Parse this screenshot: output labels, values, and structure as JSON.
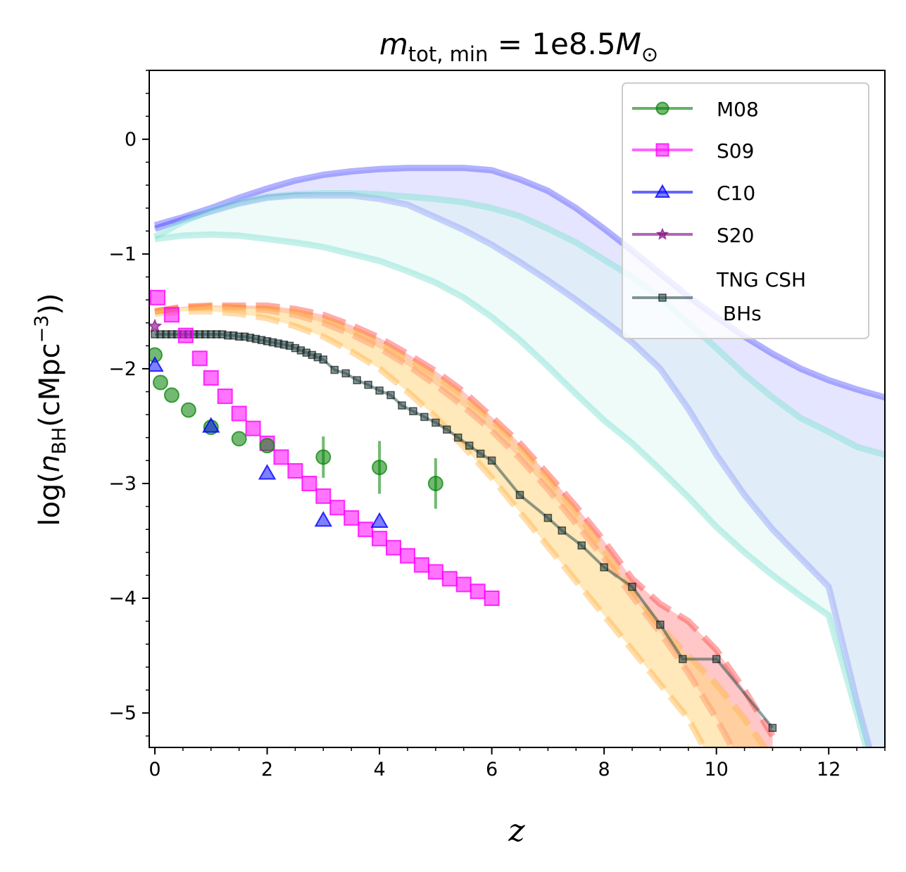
{
  "chart_data": {
    "type": "line",
    "title": {
      "main": "m",
      "sub": "tot, min",
      "rest": " = 1e8.5",
      "unit": "M",
      "sun": "⊙"
    },
    "xlabel": "z",
    "ylabel": {
      "pre": "log(",
      "n": "n",
      "sub": "BH",
      "mid": "(cMpc",
      "sup": "−3",
      "post": "))"
    },
    "xlim": [
      -0.1,
      13.0
    ],
    "ylim": [
      -5.3,
      0.6
    ],
    "x_ticks": [
      0,
      2,
      4,
      6,
      8,
      10,
      12
    ],
    "x_tick_labels": [
      "0",
      "2",
      "4",
      "6",
      "8",
      "10",
      "12"
    ],
    "y_ticks": [
      0,
      -1,
      -2,
      -3,
      -4,
      -5
    ],
    "y_tick_labels": [
      "0",
      "−1",
      "−2",
      "−3",
      "−4",
      "−5"
    ],
    "legend": {
      "location": "upper right",
      "entries": [
        {
          "label": "M08",
          "color": "#008000",
          "marker": "circle"
        },
        {
          "label": "S09",
          "color": "#ff00ff",
          "marker": "square"
        },
        {
          "label": "C10",
          "color": "#0000ff",
          "marker": "triangle"
        },
        {
          "label": "S20",
          "color": "#800080",
          "marker": "star"
        },
        {
          "label": "TNG CSH",
          "label2": " BHs",
          "color": "#2f4f4f",
          "marker": "small-square"
        }
      ]
    },
    "bands": [
      {
        "name": "seed-model-blue",
        "color": "#5555ff",
        "fill": "#c5c5ff",
        "x": [
          0,
          0.5,
          1,
          1.5,
          2,
          2.5,
          3,
          3.5,
          4,
          4.5,
          5,
          5.5,
          6,
          6.5,
          7,
          7.5,
          8,
          8.5,
          9,
          9.5,
          10,
          10.5,
          11,
          11.5,
          12,
          12.5,
          13
        ],
        "upper": [
          -0.75,
          -0.68,
          -0.6,
          -0.51,
          -0.43,
          -0.36,
          -0.31,
          -0.28,
          -0.26,
          -0.25,
          -0.25,
          -0.25,
          -0.27,
          -0.35,
          -0.45,
          -0.6,
          -0.78,
          -0.97,
          -1.17,
          -1.37,
          -1.55,
          -1.72,
          -1.87,
          -2.0,
          -2.1,
          -2.18,
          -2.25
        ],
        "lower": [
          -0.78,
          -0.7,
          -0.63,
          -0.56,
          -0.51,
          -0.49,
          -0.49,
          -0.49,
          -0.52,
          -0.57,
          -0.68,
          -0.79,
          -0.92,
          -1.07,
          -1.23,
          -1.4,
          -1.58,
          -1.77,
          -2.0,
          -2.35,
          -2.75,
          -3.1,
          -3.4,
          -3.65,
          -3.9,
          -4.9,
          -5.8
        ]
      },
      {
        "name": "seed-model-cyan",
        "color": "#7fe0d0",
        "fill": "#d9f7f2",
        "x": [
          0,
          0.5,
          1,
          1.5,
          2,
          2.5,
          3,
          3.5,
          4,
          4.5,
          5,
          5.5,
          6,
          6.5,
          7,
          7.5,
          8,
          8.5,
          9,
          9.5,
          10,
          10.5,
          11,
          11.5,
          12,
          12.5,
          13
        ],
        "upper": [
          -0.85,
          -0.72,
          -0.62,
          -0.55,
          -0.5,
          -0.48,
          -0.47,
          -0.47,
          -0.48,
          -0.5,
          -0.52,
          -0.55,
          -0.6,
          -0.67,
          -0.78,
          -0.9,
          -1.05,
          -1.2,
          -1.38,
          -1.6,
          -1.82,
          -2.05,
          -2.25,
          -2.43,
          -2.55,
          -2.68,
          -2.75
        ],
        "lower": [
          -0.87,
          -0.84,
          -0.83,
          -0.84,
          -0.87,
          -0.9,
          -0.94,
          -1.0,
          -1.06,
          -1.15,
          -1.25,
          -1.38,
          -1.55,
          -1.75,
          -1.98,
          -2.22,
          -2.45,
          -2.65,
          -2.88,
          -3.12,
          -3.38,
          -3.6,
          -3.8,
          -3.98,
          -4.15,
          -5.0,
          -5.9
        ]
      },
      {
        "name": "seed-model-red",
        "color": "#ff4444",
        "fill": "#ff9999",
        "dashed": true,
        "x": [
          0,
          0.5,
          1,
          1.5,
          2,
          2.5,
          3,
          3.5,
          4,
          4.5,
          5,
          5.5,
          6,
          6.5,
          7,
          7.5,
          8,
          8.5,
          9,
          9.5,
          10,
          10.5,
          11
        ],
        "upper": [
          -1.5,
          -1.46,
          -1.45,
          -1.45,
          -1.45,
          -1.48,
          -1.53,
          -1.62,
          -1.73,
          -1.87,
          -2.02,
          -2.2,
          -2.42,
          -2.65,
          -2.92,
          -3.2,
          -3.5,
          -3.83,
          -4.05,
          -4.2,
          -4.45,
          -4.8,
          -5.2
        ],
        "lower": [
          -1.5,
          -1.47,
          -1.46,
          -1.47,
          -1.49,
          -1.53,
          -1.6,
          -1.7,
          -1.82,
          -1.97,
          -2.14,
          -2.33,
          -2.54,
          -2.78,
          -3.05,
          -3.35,
          -3.65,
          -3.98,
          -4.3,
          -4.65,
          -5.05,
          -5.5,
          -5.9
        ]
      },
      {
        "name": "seed-model-orange",
        "color": "#ffb347",
        "fill": "#ffd580",
        "dashed": true,
        "x": [
          0,
          0.5,
          1,
          1.5,
          2,
          2.5,
          3,
          3.5,
          4,
          4.5,
          5,
          5.5,
          6,
          6.5,
          7,
          7.5,
          8,
          8.5,
          9,
          9.5,
          10,
          10.5,
          11
        ],
        "upper": [
          -1.5,
          -1.47,
          -1.45,
          -1.46,
          -1.47,
          -1.5,
          -1.56,
          -1.65,
          -1.77,
          -1.91,
          -2.06,
          -2.24,
          -2.45,
          -2.68,
          -2.95,
          -3.25,
          -3.58,
          -3.92,
          -4.25,
          -4.5,
          -4.75,
          -5.05,
          -5.4
        ],
        "lower": [
          -1.52,
          -1.5,
          -1.5,
          -1.52,
          -1.56,
          -1.63,
          -1.72,
          -1.85,
          -2.0,
          -2.2,
          -2.42,
          -2.68,
          -2.95,
          -3.25,
          -3.55,
          -3.85,
          -4.15,
          -4.45,
          -4.75,
          -5.05,
          -5.5,
          -5.9,
          -6.2
        ]
      }
    ],
    "series": [
      {
        "name": "M08",
        "color": "#008000",
        "marker": "circle",
        "x": [
          0,
          0.1,
          0.3,
          0.6,
          1.0,
          1.5,
          2.0
        ],
        "y": [
          -1.88,
          -2.12,
          -2.23,
          -2.36,
          -2.51,
          -2.61,
          -2.67
        ],
        "extra_points": [
          {
            "x": 3,
            "y": -2.77,
            "err": 0.18
          },
          {
            "x": 4,
            "y": -2.86,
            "err": 0.23
          },
          {
            "x": 5,
            "y": -3.0,
            "err": 0.22
          }
        ]
      },
      {
        "name": "S09",
        "color": "#ff00ff",
        "marker": "square",
        "x": [
          0.05,
          0.3,
          0.55,
          0.8,
          1.0,
          1.25,
          1.5,
          1.75,
          2.0,
          2.25,
          2.5,
          2.75,
          3.0,
          3.25,
          3.5,
          3.75,
          4.0,
          4.25,
          4.5,
          4.75,
          5.0,
          5.25,
          5.5,
          5.75,
          6.0
        ],
        "y": [
          -1.38,
          -1.53,
          -1.71,
          -1.91,
          -2.08,
          -2.24,
          -2.39,
          -2.52,
          -2.65,
          -2.77,
          -2.89,
          -3.0,
          -3.11,
          -3.21,
          -3.3,
          -3.4,
          -3.48,
          -3.56,
          -3.63,
          -3.71,
          -3.77,
          -3.83,
          -3.88,
          -3.94,
          -4.0
        ]
      },
      {
        "name": "C10",
        "color": "#0000ff",
        "marker": "triangle",
        "x": [
          0.0,
          1.0,
          2.0,
          3.0,
          4.0
        ],
        "y": [
          -1.97,
          -2.5,
          -2.91,
          -3.32,
          -3.33
        ]
      },
      {
        "name": "S20",
        "color": "#800080",
        "marker": "star",
        "x": [
          0.0
        ],
        "y": [
          -1.63
        ]
      },
      {
        "name": "TNG CSH BHs",
        "color": "#2f4f4f",
        "marker": "small-square",
        "x": [
          0,
          0.1,
          0.2,
          0.3,
          0.4,
          0.5,
          0.6,
          0.7,
          0.8,
          0.9,
          1.0,
          1.1,
          1.2,
          1.3,
          1.4,
          1.5,
          1.6,
          1.7,
          1.8,
          1.9,
          2.0,
          2.1,
          2.2,
          2.3,
          2.4,
          2.5,
          2.6,
          2.7,
          2.8,
          2.9,
          3.0,
          3.2,
          3.4,
          3.6,
          3.8,
          4.0,
          4.2,
          4.4,
          4.6,
          4.8,
          5.0,
          5.2,
          5.4,
          5.6,
          5.8,
          6.0,
          6.5,
          7.0,
          7.25,
          7.6,
          8.0,
          8.5,
          9.0,
          9.4,
          10.0,
          11.0
        ],
        "y": [
          -1.7,
          -1.7,
          -1.7,
          -1.7,
          -1.7,
          -1.7,
          -1.7,
          -1.7,
          -1.7,
          -1.7,
          -1.7,
          -1.7,
          -1.7,
          -1.71,
          -1.71,
          -1.72,
          -1.72,
          -1.73,
          -1.74,
          -1.75,
          -1.76,
          -1.77,
          -1.78,
          -1.79,
          -1.8,
          -1.82,
          -1.84,
          -1.86,
          -1.88,
          -1.9,
          -1.92,
          -2.01,
          -2.04,
          -2.1,
          -2.14,
          -2.19,
          -2.23,
          -2.32,
          -2.37,
          -2.42,
          -2.47,
          -2.53,
          -2.6,
          -2.67,
          -2.74,
          -2.8,
          -3.1,
          -3.3,
          -3.41,
          -3.54,
          -3.73,
          -3.9,
          -4.23,
          -4.53,
          -4.53,
          -5.13
        ]
      }
    ]
  }
}
